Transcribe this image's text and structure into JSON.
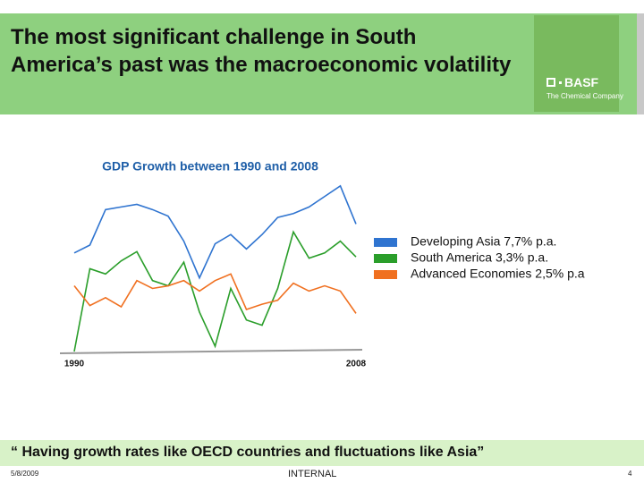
{
  "header": {
    "title": "The most significant challenge in South America’s past was the macroeconomic volatility"
  },
  "logo": {
    "brand": "BASF",
    "tagline": "The Chemical Company"
  },
  "chart_data": {
    "type": "line",
    "title": "GDP Growth between 1990 and 2008",
    "x": [
      1990,
      1991,
      1992,
      1993,
      1994,
      1995,
      1996,
      1997,
      1998,
      1999,
      2000,
      2001,
      2002,
      2003,
      2004,
      2005,
      2006,
      2007,
      2008
    ],
    "xlim": [
      1990,
      2008
    ],
    "xticks": [
      1990,
      2008
    ],
    "ylim": [
      -2,
      11
    ],
    "series": [
      {
        "name": "Developing Asia 7,7% p.a.",
        "color": "#2f74d0",
        "values": [
          5.5,
          6.1,
          8.8,
          9.0,
          9.2,
          8.8,
          8.3,
          6.4,
          3.6,
          6.2,
          6.9,
          5.8,
          6.9,
          8.2,
          8.5,
          9.0,
          9.8,
          10.6,
          7.7
        ]
      },
      {
        "name": "South America 3,3% p.a.",
        "color": "#2a9e2a",
        "values": [
          -2.0,
          4.3,
          3.9,
          4.9,
          5.6,
          3.4,
          3.0,
          4.8,
          1.0,
          -1.6,
          2.8,
          0.4,
          0.0,
          2.8,
          7.1,
          5.1,
          5.5,
          6.4,
          5.2
        ]
      },
      {
        "name": "Advanced Economies 2,5% p.a",
        "color": "#f07020",
        "values": [
          3.0,
          1.5,
          2.1,
          1.4,
          3.4,
          2.8,
          3.0,
          3.4,
          2.6,
          3.4,
          3.9,
          1.2,
          1.6,
          1.9,
          3.2,
          2.6,
          3.0,
          2.6,
          0.9
        ]
      }
    ]
  },
  "quote": "“ Having growth rates like OECD countries and fluctuations like Asia”",
  "footer": {
    "date": "5/8/2009",
    "classification": "INTERNAL",
    "page": "4"
  }
}
